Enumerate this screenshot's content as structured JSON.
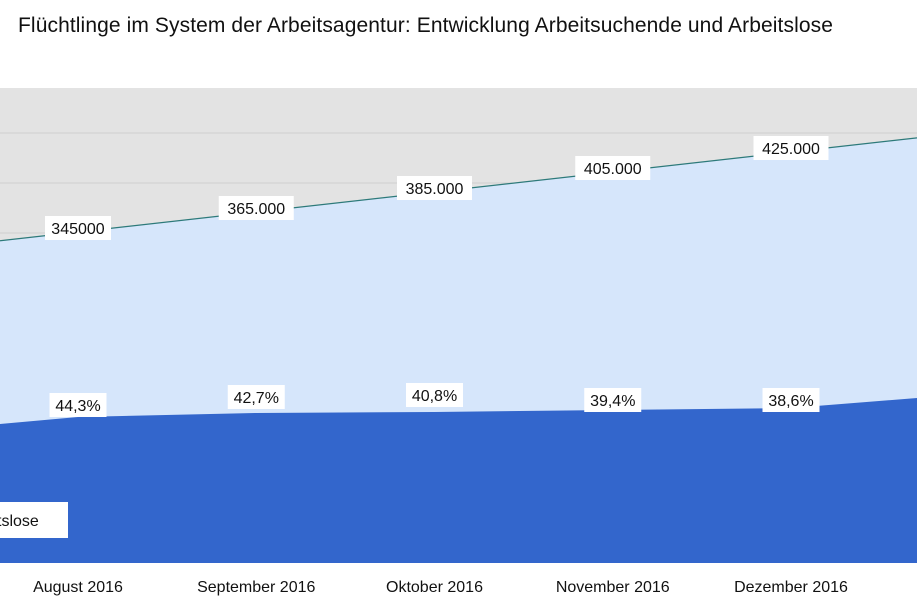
{
  "chart_data": {
    "type": "area",
    "title": "Flüchtlinge  im System  der Arbeitsagentur:  Entwicklung  Arbeitsuchende  und Arbeitslose",
    "categories": [
      "August 2016",
      "September 2016",
      "Oktober 2016",
      "November 2016",
      "Dezember 2016"
    ],
    "series": [
      {
        "name": "",
        "values": [
          345000,
          365000,
          385000,
          405000,
          425000
        ],
        "value_labels": [
          "345000",
          "365.000",
          "385.000",
          "405.000",
          "425.000"
        ],
        "color": "#d6e6fb"
      },
      {
        "name": "",
        "values": [
          44.3,
          42.7,
          40.8,
          39.4,
          38.6
        ],
        "value_labels": [
          "44,3%",
          "42,7%",
          "40,8%",
          "39,4%",
          "38,6%"
        ],
        "color": "#3366cc"
      }
    ],
    "legend": {
      "text": "tslose",
      "placement": "bottom-left"
    },
    "grid": true,
    "plot_background": "#e3e3e3",
    "line_color": "#2d7a7a"
  }
}
